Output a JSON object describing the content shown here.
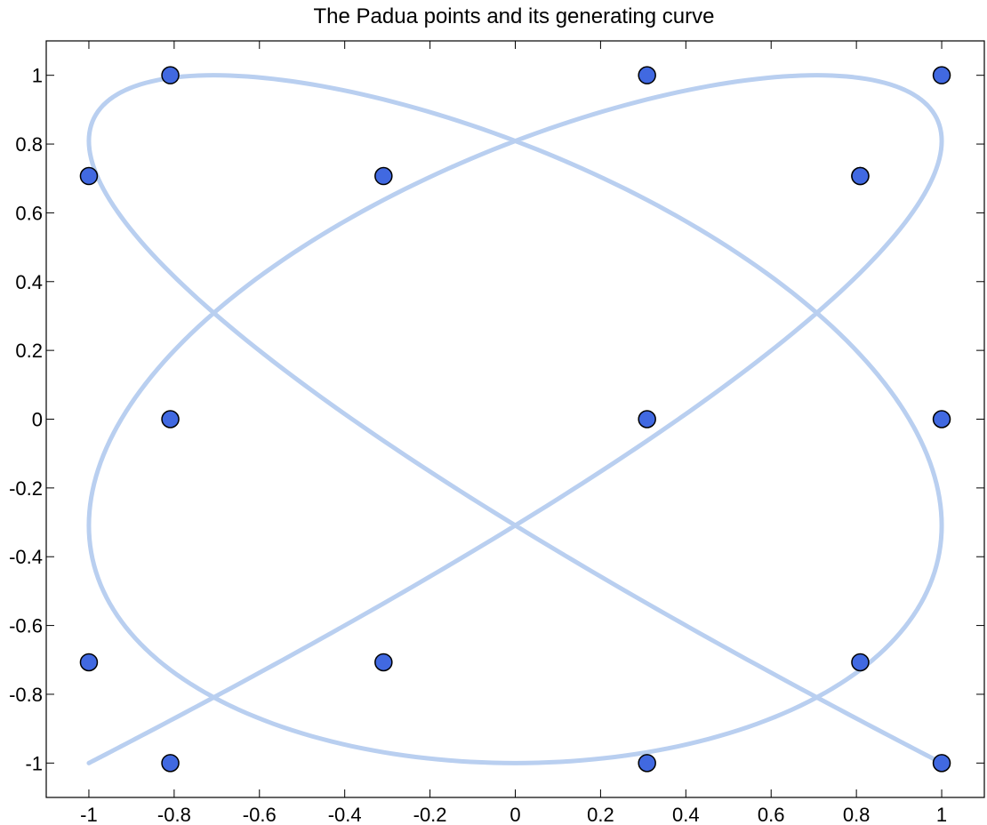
{
  "chart_data": {
    "type": "scatter",
    "title": "The Padua points and its generating curve",
    "xlabel": "",
    "ylabel": "",
    "xlim": [
      -1.1,
      1.1
    ],
    "ylim": [
      -1.1,
      1.1
    ],
    "xticks": [
      -1,
      -0.8,
      -0.6,
      -0.4,
      -0.2,
      0,
      0.2,
      0.4,
      0.6,
      0.8,
      1
    ],
    "xtick_labels": [
      "-1",
      "-0.8",
      "-0.6",
      "-0.4",
      "-0.2",
      "0",
      "0.2",
      "0.4",
      "0.6",
      "0.8",
      "1"
    ],
    "yticks": [
      -1,
      -0.8,
      -0.6,
      -0.4,
      -0.2,
      0,
      0.2,
      0.4,
      0.6,
      0.8,
      1
    ],
    "ytick_labels": [
      "-1",
      "-0.8",
      "-0.6",
      "-0.4",
      "-0.2",
      "0",
      "0.2",
      "0.4",
      "0.6",
      "0.8",
      "1"
    ],
    "grid": false,
    "legend": "none",
    "curve": {
      "x_formula": "-cos(5t)",
      "y_formula": "-cos(4t)",
      "t_range": [
        0,
        3.14159
      ],
      "color": "#b9cff0"
    },
    "points": {
      "color": "#4169e1",
      "edge_color": "#000000",
      "x": [
        -1,
        -1,
        -0.809,
        -0.809,
        -0.809,
        -0.309,
        -0.309,
        0.309,
        0.309,
        0.309,
        0.809,
        0.809,
        0.809,
        1,
        1,
        1
      ],
      "y": [
        0.707,
        -0.707,
        1,
        0,
        -1,
        0.707,
        -0.707,
        1,
        0,
        -1,
        0.707,
        -0.707,
        0.707,
        1,
        0,
        -1
      ]
    }
  }
}
